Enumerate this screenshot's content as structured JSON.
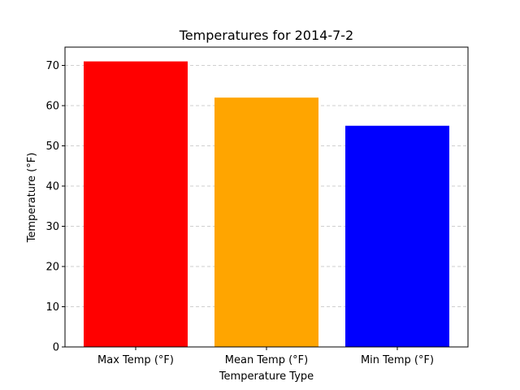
{
  "chart_data": {
    "type": "bar",
    "title": "Temperatures for 2014-7-2",
    "xlabel": "Temperature Type",
    "ylabel": "Temperature (°F)",
    "categories": [
      "Max Temp (°F)",
      "Mean Temp (°F)",
      "Min Temp (°F)"
    ],
    "values": [
      71,
      62,
      55
    ],
    "colors": [
      "#ff0000",
      "#ffa500",
      "#0000ff"
    ],
    "ylim": [
      0,
      74.55
    ],
    "yticks": [
      0,
      10,
      20,
      30,
      40,
      50,
      60,
      70
    ],
    "grid": "y-dashed",
    "grid_color": "#c0c0c0"
  }
}
